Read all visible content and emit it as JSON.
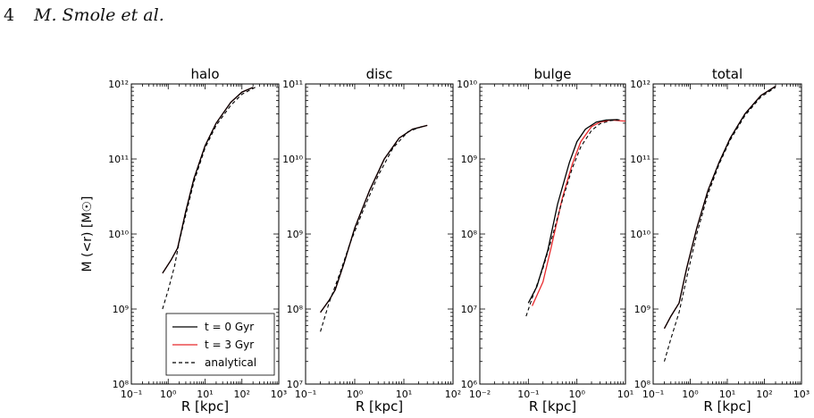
{
  "header": {
    "page_number": "4",
    "authors": "M. Smole et al."
  },
  "colors": {
    "t0": "#000000",
    "t3": "#e8282b",
    "analytical": "#000000"
  },
  "legend": {
    "placement": "lower-right of first panel",
    "entries": [
      {
        "label": "t = 0 Gyr",
        "style": "solid",
        "color": "#000000"
      },
      {
        "label": "t = 3 Gyr",
        "style": "solid",
        "color": "#e8282b"
      },
      {
        "label": "analytical",
        "style": "dashed",
        "color": "#000000"
      }
    ]
  },
  "chart_data": [
    {
      "type": "line",
      "title": "halo",
      "xlabel": "R [kpc]",
      "ylabel": "M (<r) [M☉]",
      "xscale": "log",
      "yscale": "log",
      "xlim": [
        0.1,
        1000
      ],
      "ylim": [
        100000000.0,
        1000000000000.0
      ],
      "xticks": [
        "10⁻¹",
        "10⁰",
        "10¹",
        "10²",
        "10³"
      ],
      "yticks": [
        "10⁸",
        "10⁹",
        "10¹⁰",
        "10¹¹",
        "10¹²"
      ],
      "series": [
        {
          "key": "t0",
          "x": [
            0.7,
            1.2,
            1.8,
            3,
            5,
            10,
            20,
            50,
            100,
            200
          ],
          "y": [
            3000000000.0,
            4500000000.0,
            6500000000.0,
            20000000000.0,
            55000000000.0,
            150000000000.0,
            300000000000.0,
            570000000000.0,
            780000000000.0,
            900000000000.0
          ]
        },
        {
          "key": "t3",
          "x": [
            0.7,
            1.2,
            1.8,
            3,
            5,
            10,
            20,
            50,
            100,
            200
          ],
          "y": [
            3000000000.0,
            4500000000.0,
            6500000000.0,
            20000000000.0,
            55000000000.0,
            150000000000.0,
            300000000000.0,
            570000000000.0,
            780000000000.0,
            900000000000.0
          ]
        },
        {
          "key": "analytical",
          "x": [
            0.7,
            1,
            1.5,
            2,
            3,
            5,
            10,
            20,
            50,
            100,
            250
          ],
          "y": [
            1000000000.0,
            1800000000.0,
            3800000000.0,
            8000000000.0,
            18000000000.0,
            50000000000.0,
            140000000000.0,
            280000000000.0,
            520000000000.0,
            730000000000.0,
            920000000000.0
          ]
        }
      ]
    },
    {
      "type": "line",
      "title": "disc",
      "xlabel": "R [kpc]",
      "ylabel": "",
      "xscale": "log",
      "yscale": "log",
      "xlim": [
        0.1,
        100
      ],
      "ylim": [
        10000000.0,
        100000000000.0
      ],
      "xticks": [
        "10⁻¹",
        "10⁰",
        "10¹",
        "10²"
      ],
      "yticks": [
        "10⁷",
        "10⁸",
        "10⁹",
        "10¹⁰",
        "10¹¹"
      ],
      "series": [
        {
          "key": "t0",
          "x": [
            0.2,
            0.3,
            0.4,
            0.6,
            1,
            2,
            4,
            8,
            15,
            30
          ],
          "y": [
            90000000.0,
            130000000.0,
            180000000.0,
            400000000.0,
            1200000000.0,
            3800000000.0,
            10000000000.0,
            19000000000.0,
            25000000000.0,
            28000000000.0
          ]
        },
        {
          "key": "t3",
          "x": [
            0.2,
            0.3,
            0.4,
            0.6,
            1,
            2,
            4,
            8,
            15,
            30
          ],
          "y": [
            90000000.0,
            130000000.0,
            180000000.0,
            400000000.0,
            1200000000.0,
            3800000000.0,
            10000000000.0,
            19000000000.0,
            25000000000.0,
            28000000000.0
          ]
        },
        {
          "key": "analytical",
          "x": [
            0.2,
            0.3,
            0.5,
            0.8,
            1.5,
            3,
            6,
            12,
            25
          ],
          "y": [
            50000000.0,
            120000000.0,
            300000000.0,
            750000000.0,
            2100000000.0,
            6000000000.0,
            14000000000.0,
            23000000000.0,
            27500000000.0
          ]
        }
      ]
    },
    {
      "type": "line",
      "title": "bulge",
      "xlabel": "R [kpc]",
      "ylabel": "",
      "xscale": "log",
      "yscale": "log",
      "xlim": [
        0.01,
        10
      ],
      "ylim": [
        1000000.0,
        10000000000.0
      ],
      "xticks": [
        "10⁻²",
        "10⁻¹",
        "10⁰",
        "10¹"
      ],
      "yticks": [
        "10⁶",
        "10⁷",
        "10⁸",
        "10⁹",
        "10¹⁰"
      ],
      "series": [
        {
          "key": "t0",
          "x": [
            0.1,
            0.15,
            0.25,
            0.4,
            0.7,
            1,
            1.5,
            2.5,
            4,
            7
          ],
          "y": [
            12000000.0,
            20000000.0,
            60000000.0,
            250000000.0,
            900000000.0,
            1700000000.0,
            2500000000.0,
            3100000000.0,
            3300000000.0,
            3350000000.0
          ]
        },
        {
          "key": "t3",
          "x": [
            0.12,
            0.2,
            0.3,
            0.5,
            0.8,
            1.2,
            2,
            3,
            5,
            10
          ],
          "y": [
            11000000.0,
            23000000.0,
            70000000.0,
            300000000.0,
            850000000.0,
            1700000000.0,
            2700000000.0,
            3100000000.0,
            3300000000.0,
            3200000000.0
          ]
        },
        {
          "key": "analytical",
          "x": [
            0.09,
            0.12,
            0.2,
            0.3,
            0.5,
            0.8,
            1.2,
            2,
            3,
            5,
            8
          ],
          "y": [
            8000000.0,
            14000000.0,
            35000000.0,
            85000000.0,
            280000000.0,
            750000000.0,
            1450000000.0,
            2400000000.0,
            2950000000.0,
            3250000000.0,
            3350000000.0
          ]
        }
      ]
    },
    {
      "type": "line",
      "title": "total",
      "xlabel": "R [kpc]",
      "ylabel": "",
      "xscale": "log",
      "yscale": "log",
      "xlim": [
        0.1,
        1000
      ],
      "ylim": [
        100000000.0,
        1000000000000.0
      ],
      "xticks": [
        "10⁻¹",
        "10⁰",
        "10¹",
        "10²",
        "10³"
      ],
      "yticks": [
        "10⁸",
        "10⁹",
        "10¹⁰",
        "10¹¹",
        "10¹²"
      ],
      "series": [
        {
          "key": "t0",
          "x": [
            0.2,
            0.3,
            0.5,
            0.8,
            1.5,
            3,
            6,
            12,
            30,
            80,
            200
          ],
          "y": [
            550000000.0,
            800000000.0,
            1200000000.0,
            3500000000.0,
            12000000000.0,
            38000000000.0,
            90000000000.0,
            190000000000.0,
            400000000000.0,
            700000000000.0,
            930000000000.0
          ]
        },
        {
          "key": "t3",
          "x": [
            0.2,
            0.3,
            0.5,
            0.8,
            1.5,
            3,
            6,
            12,
            30,
            80,
            200
          ],
          "y": [
            550000000.0,
            800000000.0,
            1200000000.0,
            3500000000.0,
            12000000000.0,
            38000000000.0,
            90000000000.0,
            190000000000.0,
            400000000000.0,
            700000000000.0,
            930000000000.0
          ]
        },
        {
          "key": "analytical",
          "x": [
            0.2,
            0.3,
            0.5,
            0.8,
            1.5,
            3,
            6,
            12,
            30,
            80,
            200
          ],
          "y": [
            200000000.0,
            400000000.0,
            900000000.0,
            2600000000.0,
            10000000000.0,
            34000000000.0,
            85000000000.0,
            180000000000.0,
            380000000000.0,
            670000000000.0,
            900000000000.0
          ]
        }
      ]
    }
  ]
}
